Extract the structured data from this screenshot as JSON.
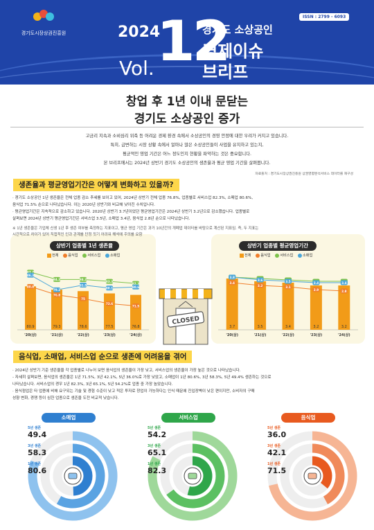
{
  "header": {
    "org_name": "경기도시장상권진흥원",
    "issn": "ISSN : 2799 - 6093",
    "year": "2024",
    "vol_label": "Vol.",
    "vol_number": "12",
    "series_line1": "경기도 소상공인",
    "series_line2": "경제이슈",
    "series_line3": "브리프",
    "colors": {
      "bg": "#1f44a8",
      "accent": "#fdd64a"
    }
  },
  "main_title": {
    "line1": "창업 후 1년 이내 문닫는",
    "line2": "경기도 소상공인 증가"
  },
  "intro": [
    "고금리 지속과 소비심리 위축 등 어려운 경제 환경 속에서 소상공인의 경영 안정에 대한 우려가 커지고 있습니다.",
    "특히, 급변하는 시장 상황 속에서 얼마나 많은 소상공인들이 사업을 유지하고 있는지,",
    "평균적인 영업 기간은 어느 정도인지 현황을 파악하는 것은 중요합니다.",
    "본 브리프에서는 2024년 상반기 경기도 소상공인의 생존율과 평균 영업 기간을 살펴봅니다."
  ],
  "source_note": "자료출처 : 경기도시장상권진흥원 상권영향분석서비스 데이터를 재구성",
  "section1": {
    "heading": "생존율과 평균영업기간은 어떻게 변화하고 있을까?",
    "bullets": [
      "· 경기도 소상공인 1년 생존율은 전체 업종 감소 추세를 보이고 있어, 2024년 상반기 전체 업종 76.8%, 업종별로 서비스업 82.3%, 소매업 80.6%,",
      "  음식업 71.5% 순으로 나타났습니다. 이는 2020년 상반기와 비교해 낮아진 수치입니다.",
      "· 평균영업기간은 지속적으로 감소하고 있습니다. 2020년 상반기 3.7년이었던 평균영업기간은 2024년 상반기 3.2년으로 감소했습니다. 업종별로",
      "  살펴보면 2024년 상반기 평균영업기간은 서비스업 3.5년, 소매업 3.4년, 음식업 2.8년 순으로 나타났습니다."
    ],
    "notes": [
      "※ 1년 생존율은 기업체 신생 1년 후 생존 여부를 측정하는 지표이고, 평균 영업 기간은 과거 10년간의 개폐업 데이터를 바탕으로 계산된 지표임. 즉, 두 지표는",
      "   시간적으로 차이가 있어 직접적인 인과 관계를 단정 짓기 어려워 해석에 주의를 요함"
    ]
  },
  "chart_data": [
    {
      "type": "bar",
      "title": "상반기 업종별 1년 생존율",
      "categories": [
        "'20(상)",
        "'21(상)",
        "'22(상)",
        "'23(상)",
        "'24(상)"
      ],
      "series": [
        {
          "name": "전체",
          "values": [
            80.9,
            79.3,
            78.6,
            77.5,
            76.8
          ],
          "color": "#f29b18"
        },
        {
          "name": "음식업",
          "values": [
            80.8,
            76.8,
            75.0,
            72.6,
            71.5
          ],
          "color": "#f07e2a"
        },
        {
          "name": "서비스업",
          "values": [
            87.7,
            84.2,
            84.2,
            83.3,
            82.3
          ],
          "color": "#7dc24b"
        },
        {
          "name": "소매업",
          "values": [
            86.3,
            79.2,
            81.5,
            80.1,
            80.6
          ],
          "color": "#4aa6d9"
        }
      ],
      "ylim": [
        60,
        90
      ]
    },
    {
      "type": "bar",
      "title": "상반기 업종별 평균영업기간",
      "categories": [
        "'20(상)",
        "'21(상)",
        "'22(상)",
        "'23(상)",
        "'24(상)"
      ],
      "series": [
        {
          "name": "전체",
          "values": [
            3.7,
            3.5,
            3.4,
            3.2,
            3.2
          ],
          "color": "#f29b18"
        },
        {
          "name": "음식업",
          "values": [
            3.4,
            3.2,
            3.1,
            2.9,
            2.8
          ],
          "color": "#f07e2a"
        },
        {
          "name": "서비스업",
          "values": [
            3.8,
            3.7,
            3.6,
            3.5,
            3.5
          ],
          "color": "#7dc24b"
        },
        {
          "name": "소매업",
          "values": [
            3.8,
            3.6,
            3.5,
            3.4,
            3.4
          ],
          "color": "#4aa6d9"
        }
      ],
      "ylim": [
        0,
        4.5
      ]
    }
  ],
  "closed_sign": "CLOSED",
  "section2": {
    "heading": "음식업, 소매업, 서비스업 순으로 생존에 어려움을 겪어",
    "bullets": [
      "· 2024년 상반기 기준 생존율을 각 업종별로 나누어 보면 음식업의 생존율이 가장 낮고, 서비스업의 생존율이 가장 높은 것으로 나타났습니다.",
      "  - 자세히 살펴보면, 음식업의 생존율은 1년 71.5%, 3년 42.1%, 5년 36.0%로 가장 낮았고, 소매업이 1년 80.6%, 3년 58.3%, 5년 49.4% 생존하는 것으로",
      "    나타났습니다. 서비스업의 경우 1년 82.3%, 3년 65.1%, 5년 54.2%로 업종 중 가장 높았습니다.",
      "· 음식점업은 타 업종에 비해 요구되는 기술 및 경험 수준이 낮고 적은 투자로 창업이 가능하다는 인식 때문에 진입장벽이 낮은 편이지만, 소비자의 구매",
      "  성향 변화, 경쟁 등이 심한 업종으로 생존을 도전 비교적 낮습니다."
    ],
    "industries": [
      {
        "name": "소매업",
        "color": "#2f7fd0",
        "light": "#8ec2ee",
        "mid": "#5aa3e2",
        "y5_label": "5년 생존",
        "y5": "49.4",
        "y3_label": "3년 생존",
        "y3": "58.3",
        "y1_label": "1년 생존",
        "y1": "80.6",
        "rates": [
          0.494,
          0.583,
          0.806
        ]
      },
      {
        "name": "서비스업",
        "color": "#2fa64a",
        "light": "#9fd89a",
        "mid": "#5cc062",
        "y5_label": "5년 생존",
        "y5": "54.2",
        "y3_label": "3년 생존",
        "y3": "65.1",
        "y1_label": "1년 생존",
        "y1": "82.3",
        "rates": [
          0.542,
          0.651,
          0.823
        ]
      },
      {
        "name": "음식업",
        "color": "#e85a1f",
        "light": "#f6b594",
        "mid": "#f08a5a",
        "y5_label": "5년 생존",
        "y5": "36.0",
        "y3_label": "3년 생존",
        "y3": "42.1",
        "y1_label": "1년 생존",
        "y1": "71.5",
        "rates": [
          0.36,
          0.421,
          0.715
        ]
      }
    ]
  }
}
